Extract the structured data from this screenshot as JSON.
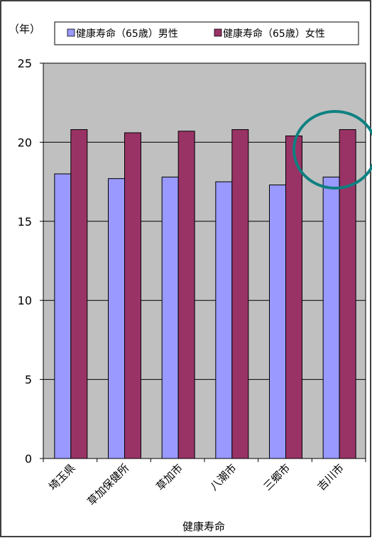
{
  "chart_data": {
    "type": "bar",
    "title": "",
    "xlabel": "健康寿命",
    "ylabel": "（年）",
    "ylim": [
      0,
      25
    ],
    "yticks": [
      0,
      5,
      10,
      15,
      20,
      25
    ],
    "grid": true,
    "legend_position": "top",
    "categories": [
      "埼玉県",
      "草加保健所",
      "草加市",
      "八潮市",
      "三郷市",
      "吉川市"
    ],
    "series": [
      {
        "name": "健康寿命（65歳）男性",
        "color": "#9999ff",
        "values": [
          18.0,
          17.7,
          17.8,
          17.5,
          17.3,
          17.8
        ]
      },
      {
        "name": "健康寿命（65歳）女性",
        "color": "#993366",
        "values": [
          20.8,
          20.6,
          20.7,
          20.8,
          20.4,
          20.8
        ]
      }
    ],
    "plot_background": "#c0c0c0",
    "highlight_color": "#0e8080"
  }
}
